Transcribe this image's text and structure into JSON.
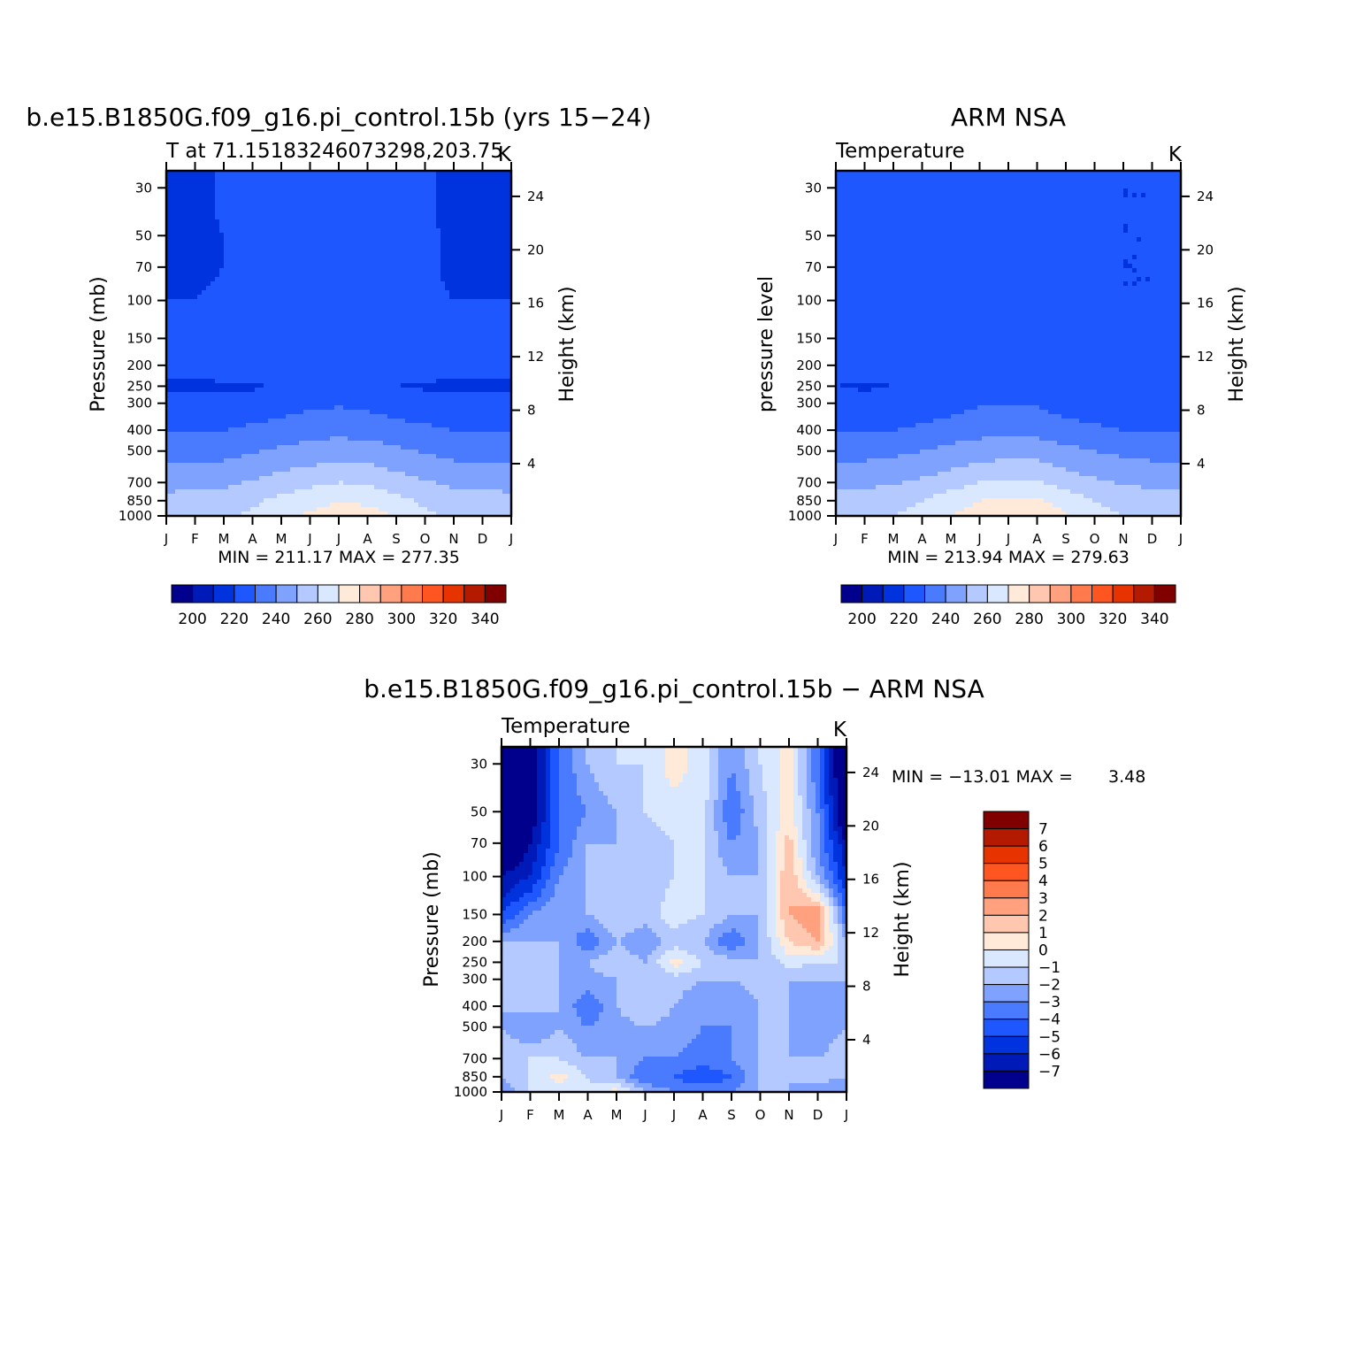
{
  "palettes": {
    "abs": [
      "#00008c",
      "#001ab8",
      "#0033dd",
      "#1f57ff",
      "#4a7bff",
      "#7fa2ff",
      "#b3c9ff",
      "#d9e7ff",
      "#ffe9d9",
      "#ffc7b0",
      "#ffa07f",
      "#ff7a4d",
      "#ff5520",
      "#e63300",
      "#b31a00",
      "#800000"
    ],
    "diff": [
      "#00008c",
      "#001ab8",
      "#0033dd",
      "#1f57ff",
      "#4a7bff",
      "#7fa2ff",
      "#b3c9ff",
      "#d9e7ff",
      "#ffe9d9",
      "#ffc7b0",
      "#ffa07f",
      "#ff7a4d",
      "#ff5520",
      "#e63300",
      "#b31a00",
      "#800000"
    ]
  },
  "chart_data": [
    {
      "type": "heatmap",
      "title": "b.e15.B1850G.f09_g16.pi_control.15b (yrs 15−24)",
      "left_string": "T at 71.15183246073298,203.75",
      "right_string": "K",
      "ylabel": "Pressure (mb)",
      "ylabel_right": "Height (km)",
      "x": [
        "J",
        "F",
        "M",
        "A",
        "M",
        "J",
        "J",
        "A",
        "S",
        "O",
        "N",
        "D",
        "J"
      ],
      "y_ticks": [
        30,
        50,
        70,
        100,
        150,
        200,
        250,
        300,
        400,
        500,
        700,
        850,
        1000
      ],
      "y_range": [
        25,
        1000
      ],
      "height_ticks_km": [
        24,
        20,
        16,
        12,
        8,
        4
      ],
      "stats": "MIN = 211.17 MAX = 277.35",
      "colorbar": {
        "ticks": [
          "200",
          "220",
          "240",
          "260",
          "280",
          "300",
          "320",
          "340"
        ]
      },
      "levels": [
        30,
        50,
        70,
        100,
        150,
        200,
        250,
        300,
        400,
        500,
        700,
        850,
        1000
      ],
      "z": [
        [
          213,
          213,
          216,
          217,
          218,
          218,
          219,
          218,
          217,
          216,
          213,
          213,
          213
        ],
        [
          214,
          214,
          215,
          217,
          218,
          218,
          218,
          218,
          217,
          216,
          214,
          214,
          214
        ],
        [
          214,
          214,
          215,
          217,
          218,
          218,
          218,
          218,
          217,
          216,
          214,
          214,
          214
        ],
        [
          215,
          215,
          216,
          217,
          218,
          218,
          218,
          218,
          217,
          216,
          215,
          215,
          215
        ],
        [
          217,
          217,
          219,
          219,
          219,
          219,
          219,
          219,
          219,
          219,
          218,
          217,
          217
        ],
        [
          217,
          217,
          218,
          218,
          218,
          218,
          218,
          218,
          218,
          218,
          217,
          217,
          217
        ],
        [
          214,
          214,
          214,
          214,
          216,
          218,
          219,
          218,
          215,
          214,
          214,
          214,
          214
        ],
        [
          218,
          218,
          218,
          219,
          221,
          223,
          224,
          223,
          220,
          219,
          218,
          218,
          218
        ],
        [
          224,
          224,
          225,
          227,
          229,
          231,
          232,
          231,
          229,
          227,
          225,
          224,
          224
        ],
        [
          231,
          231,
          232,
          234,
          237,
          239,
          241,
          240,
          237,
          234,
          232,
          231,
          231
        ],
        [
          242,
          242,
          243,
          246,
          250,
          253,
          255,
          254,
          250,
          246,
          243,
          242,
          242
        ],
        [
          248,
          249,
          250,
          253,
          258,
          261,
          264,
          263,
          258,
          253,
          250,
          249,
          248
        ],
        [
          252,
          253,
          254,
          257,
          263,
          267,
          271,
          270,
          264,
          257,
          254,
          253,
          252
        ]
      ]
    },
    {
      "type": "heatmap",
      "title": "ARM NSA",
      "left_string": "Temperature",
      "right_string": "K",
      "ylabel": "pressure level",
      "ylabel_right": "Height (km)",
      "x": [
        "J",
        "F",
        "M",
        "A",
        "M",
        "J",
        "J",
        "A",
        "S",
        "O",
        "N",
        "D",
        "J"
      ],
      "y_ticks": [
        30,
        50,
        70,
        100,
        150,
        200,
        250,
        300,
        400,
        500,
        700,
        850,
        1000
      ],
      "y_range": [
        25,
        1000
      ],
      "height_ticks_km": [
        24,
        20,
        16,
        12,
        8,
        4
      ],
      "stats": "MIN = 213.94 MAX = 279.63",
      "colorbar": {
        "ticks": [
          "200",
          "220",
          "240",
          "260",
          "280",
          "300",
          "320",
          "340"
        ]
      },
      "levels": [
        30,
        50,
        70,
        100,
        150,
        200,
        250,
        300,
        400,
        500,
        700,
        850,
        1000
      ],
      "z": [
        [
          222,
          222,
          222,
          222,
          222,
          222,
          219,
          222,
          222,
          216,
          215,
          215,
          222
        ],
        [
          222,
          222,
          222,
          222,
          222,
          222,
          222,
          222,
          222,
          217,
          215,
          215,
          222
        ],
        [
          222,
          222,
          222,
          222,
          222,
          222,
          222,
          222,
          222,
          218,
          215,
          215,
          222
        ],
        [
          222,
          222,
          222,
          222,
          222,
          222,
          222,
          222,
          222,
          219,
          215,
          215,
          222
        ],
        [
          222,
          222,
          222,
          222,
          222,
          222,
          222,
          222,
          222,
          219,
          216,
          216,
          222
        ],
        [
          217,
          218,
          220,
          221,
          222,
          222,
          222,
          222,
          222,
          220,
          217,
          217,
          217
        ],
        [
          215,
          214,
          215,
          218,
          220,
          222,
          223,
          222,
          219,
          216,
          215,
          215,
          215
        ],
        [
          218,
          218,
          218,
          219,
          221,
          224,
          225,
          224,
          221,
          219,
          218,
          218,
          218
        ],
        [
          224,
          224,
          225,
          227,
          230,
          232,
          233,
          232,
          229,
          227,
          225,
          224,
          224
        ],
        [
          232,
          232,
          233,
          235,
          238,
          240,
          242,
          241,
          238,
          235,
          233,
          232,
          232
        ],
        [
          243,
          243,
          244,
          247,
          251,
          255,
          257,
          256,
          251,
          247,
          244,
          243,
          243
        ],
        [
          249,
          250,
          251,
          255,
          261,
          265,
          268,
          267,
          261,
          255,
          251,
          250,
          249
        ],
        [
          253,
          254,
          255,
          258,
          265,
          270,
          274,
          273,
          266,
          259,
          255,
          254,
          253
        ]
      ]
    },
    {
      "type": "heatmap",
      "title": "b.e15.B1850G.f09_g16.pi_control.15b − ARM NSA",
      "left_string": "Temperature",
      "right_string": "K",
      "ylabel": "Pressure (mb)",
      "ylabel_right": "Height (km)",
      "x": [
        "J",
        "F",
        "M",
        "A",
        "M",
        "J",
        "J",
        "A",
        "S",
        "O",
        "N",
        "D",
        "J"
      ],
      "y_ticks": [
        30,
        50,
        70,
        100,
        150,
        200,
        250,
        300,
        400,
        500,
        700,
        850,
        1000
      ],
      "y_range": [
        25,
        1000
      ],
      "height_ticks_km": [
        24,
        20,
        16,
        12,
        8,
        4
      ],
      "stats_label": "MIN = −13.01 MAX =",
      "stats_value": "3.48",
      "colorbar": {
        "ticks": [
          "7",
          "6",
          "5",
          "4",
          "3",
          "2",
          "1",
          "0",
          "−1",
          "−2",
          "−3",
          "−4",
          "−5",
          "−6",
          "−7"
        ]
      },
      "levels": [
        30,
        50,
        70,
        100,
        150,
        200,
        250,
        300,
        400,
        500,
        700,
        850,
        1000
      ],
      "z": [
        [
          -9,
          -8,
          -4,
          -2,
          -1,
          -1,
          0.5,
          -0.5,
          -3,
          -1,
          0.5,
          -4,
          -9
        ],
        [
          -9,
          -8,
          -4,
          -3,
          -2,
          -1,
          -0.5,
          -0.5,
          -4,
          -1.5,
          0.5,
          -3,
          -9
        ],
        [
          -9,
          -7,
          -4,
          -2,
          -2,
          -1.5,
          -1,
          -1,
          -3,
          -2,
          1.5,
          -3,
          -7
        ],
        [
          -7,
          -6,
          -3,
          -2,
          -2,
          -1.5,
          -1,
          -1,
          -2,
          -2,
          2,
          -2,
          -6
        ],
        [
          -5,
          -3,
          -2,
          -2,
          -1,
          -1.5,
          -0.5,
          -1,
          -2,
          -2,
          2,
          3,
          -4
        ],
        [
          -2,
          -2,
          -2,
          -4,
          -2,
          -3,
          -1.5,
          -2,
          -4,
          -2,
          1,
          2,
          -2
        ],
        [
          -1,
          -1,
          -2,
          -2,
          -1,
          -2,
          0.5,
          -1,
          -1.5,
          -2,
          -0.5,
          -1,
          -1
        ],
        [
          -2,
          -2,
          -2,
          -2.5,
          -2,
          -2,
          -1.5,
          -2,
          -2,
          -1.5,
          -2,
          -2,
          -2
        ],
        [
          -2,
          -1.5,
          -2,
          -4,
          -2,
          -1,
          -2,
          -3,
          -3,
          -2,
          -2,
          -3,
          -2
        ],
        [
          -2,
          -3,
          -2,
          -3,
          -2.5,
          -2,
          -2.5,
          -3,
          -3,
          -2,
          -2,
          -3,
          -2
        ],
        [
          -1,
          -1,
          -1,
          -2,
          -2,
          -3,
          -3,
          -3.5,
          -3,
          -2,
          -2,
          -2,
          -1
        ],
        [
          -2,
          -1,
          0.5,
          -1,
          -2,
          -4,
          -4,
          -5,
          -4,
          -2,
          -2,
          -1.5,
          -2
        ],
        [
          -3,
          -1,
          -0.5,
          -1,
          0.5,
          -2,
          -3,
          -3,
          -3,
          -2,
          -2,
          -3,
          -3
        ]
      ]
    }
  ]
}
